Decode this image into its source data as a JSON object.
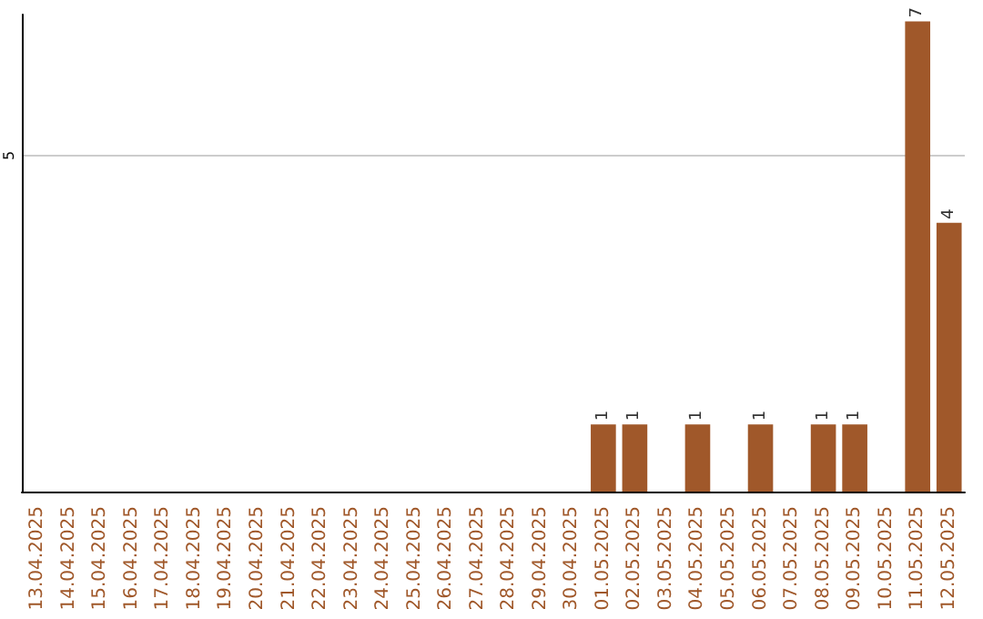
{
  "chart_data": {
    "type": "bar",
    "categories": [
      "13.04.2025",
      "14.04.2025",
      "15.04.2025",
      "16.04.2025",
      "17.04.2025",
      "18.04.2025",
      "19.04.2025",
      "20.04.2025",
      "21.04.2025",
      "22.04.2025",
      "23.04.2025",
      "24.04.2025",
      "25.04.2025",
      "26.04.2025",
      "27.04.2025",
      "28.04.2025",
      "29.04.2025",
      "30.04.2025",
      "01.05.2025",
      "02.05.2025",
      "03.05.2025",
      "04.05.2025",
      "05.05.2025",
      "06.05.2025",
      "07.05.2025",
      "08.05.2025",
      "09.05.2025",
      "10.05.2025",
      "11.05.2025",
      "12.05.2025"
    ],
    "values": [
      null,
      null,
      null,
      null,
      null,
      null,
      null,
      null,
      null,
      null,
      null,
      null,
      null,
      null,
      null,
      null,
      null,
      null,
      1,
      1,
      null,
      1,
      null,
      1,
      null,
      1,
      1,
      null,
      7,
      4
    ],
    "color": "#a0582a",
    "ylim": [
      0,
      7.1
    ],
    "yticks": [
      5
    ],
    "grid": "y",
    "data_labels": true
  }
}
